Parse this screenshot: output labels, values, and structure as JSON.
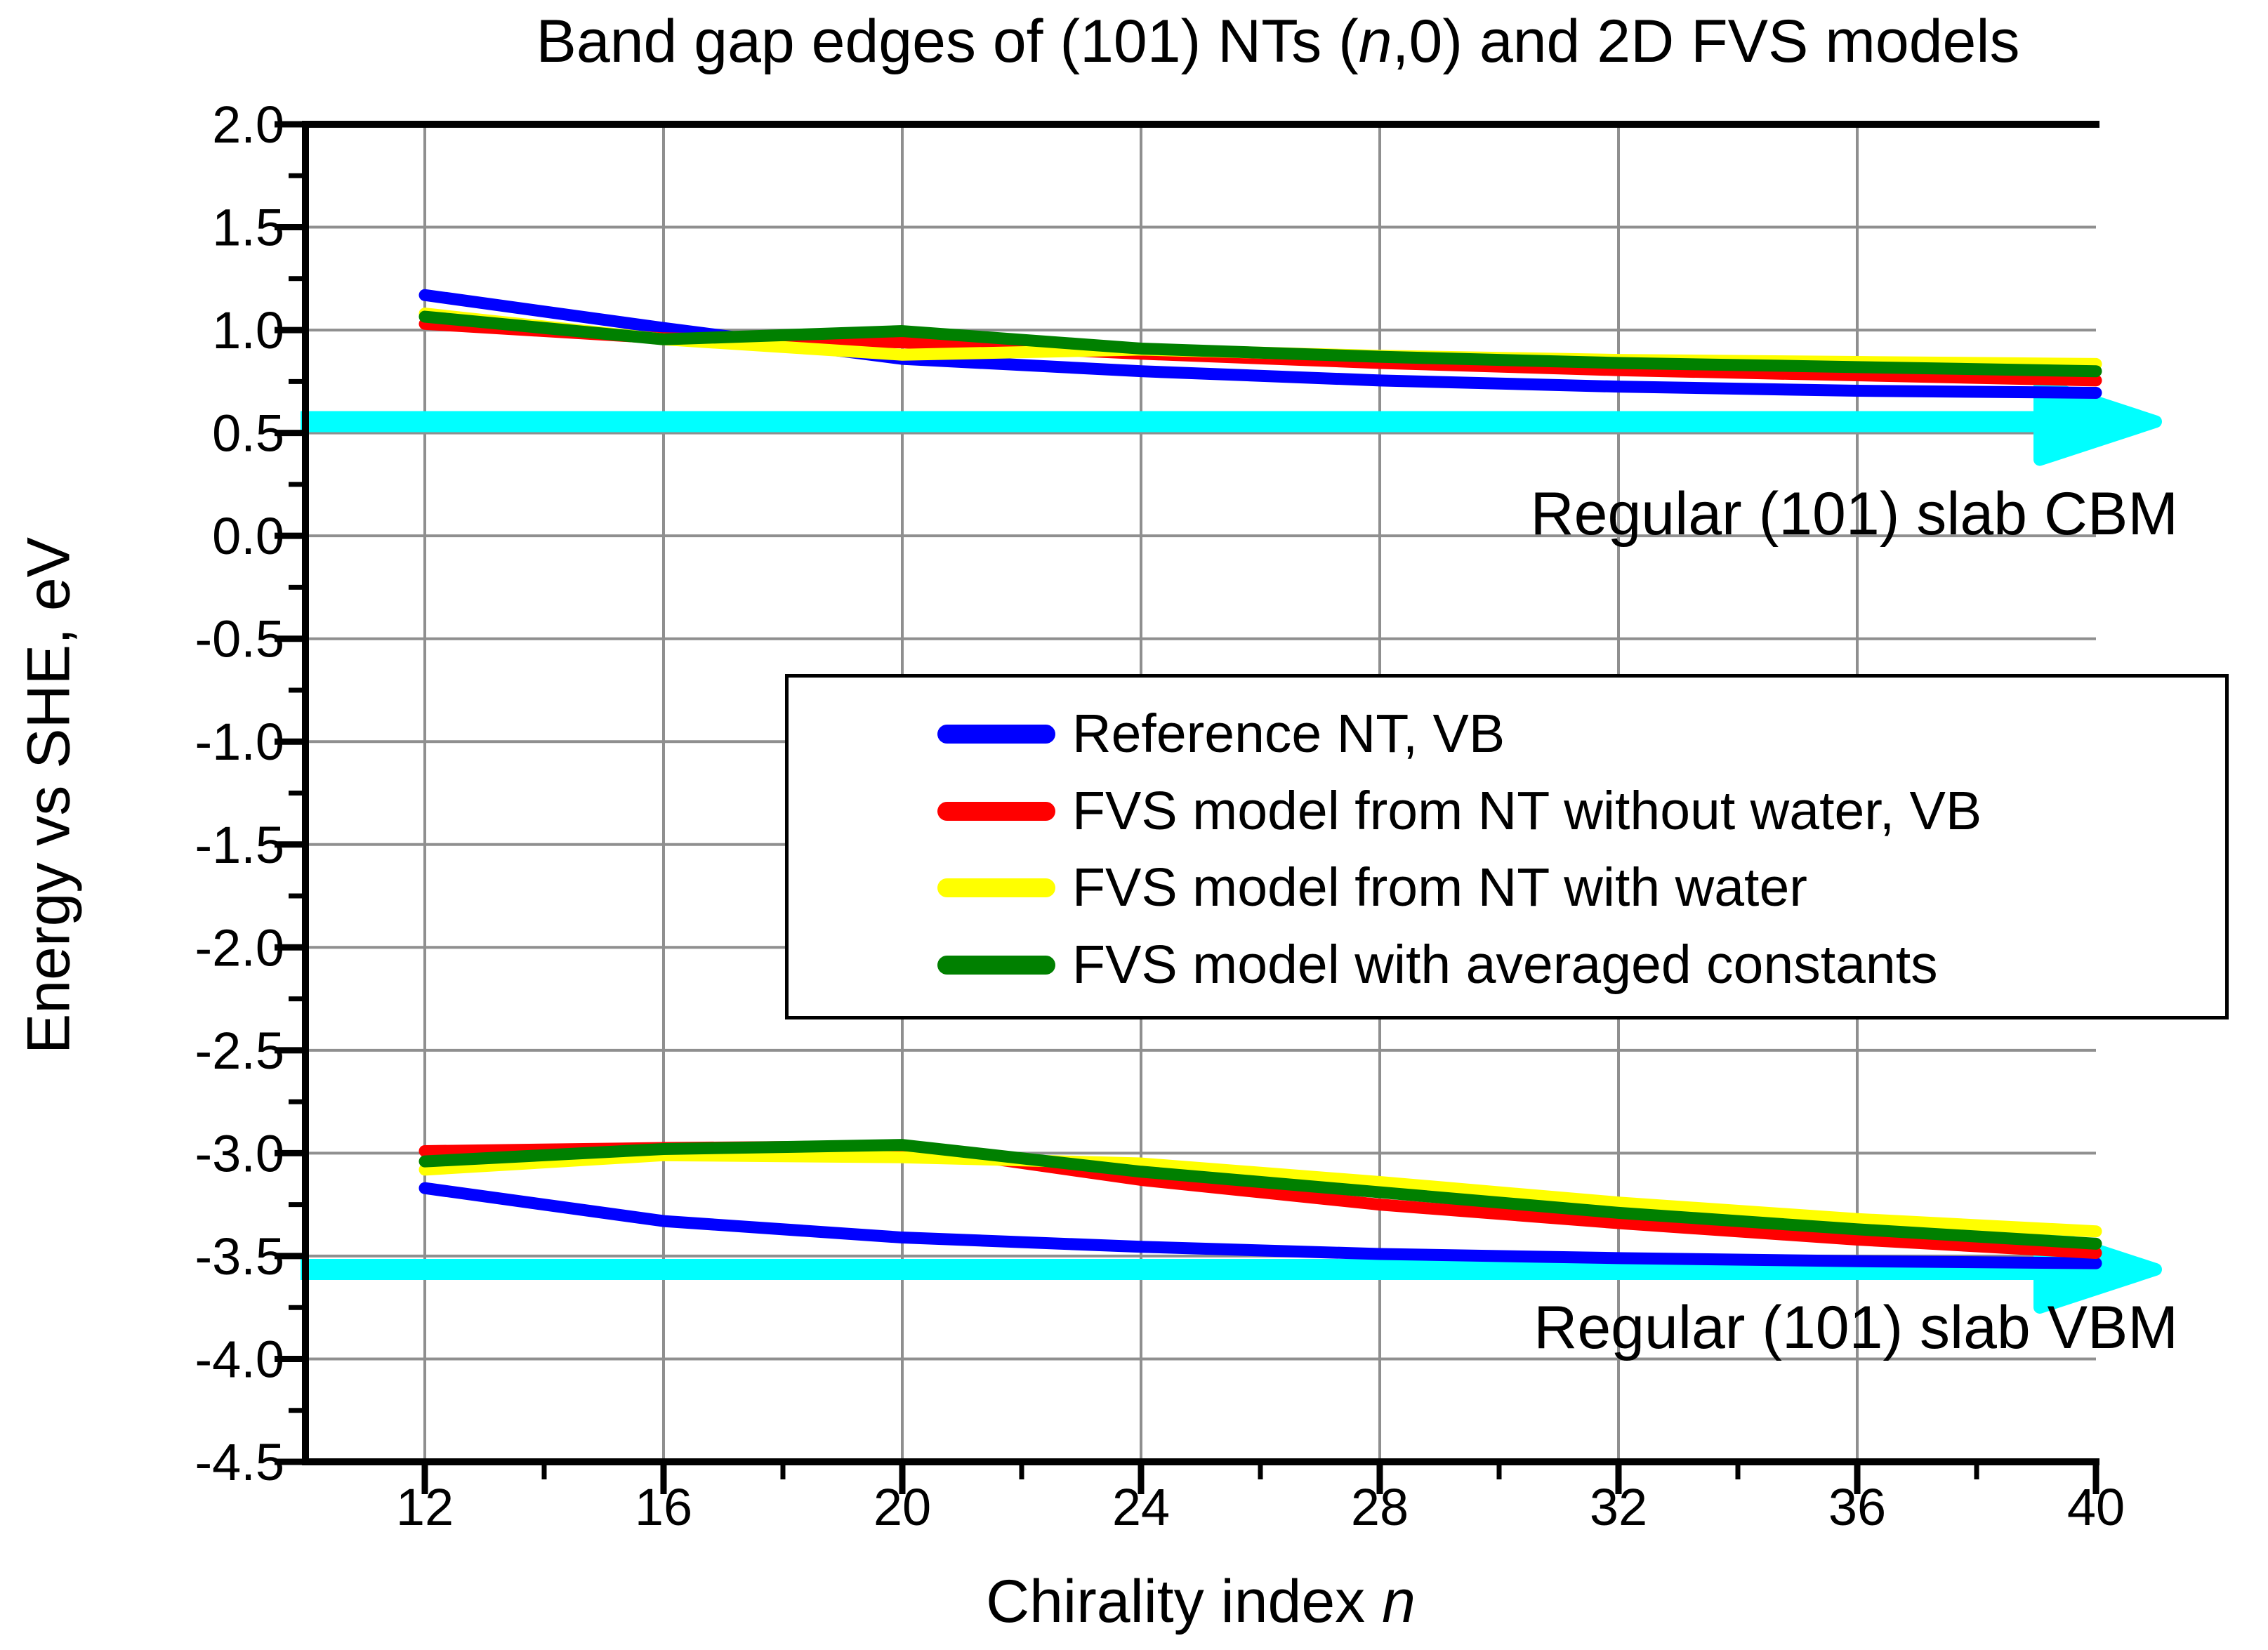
{
  "title": {
    "pre": "Band gap edges of (101) NTs (",
    "italic_var": "n",
    "post": ",0) and 2D FVS models"
  },
  "y_axis": {
    "label": "Energy vs SHE, eV",
    "tick_labels": [
      "2.0",
      "1.5",
      "1.0",
      "0.5",
      "0.0",
      "-0.5",
      "-1.0",
      "-1.5",
      "-2.0",
      "-2.5",
      "-3.0",
      "-3.5",
      "-4.0",
      "-4.5"
    ],
    "tick_values": [
      2.0,
      1.5,
      1.0,
      0.5,
      0.0,
      -0.5,
      -1.0,
      -1.5,
      -2.0,
      -2.5,
      -3.0,
      -3.5,
      -4.0,
      -4.5
    ]
  },
  "x_axis": {
    "label_pre": "Chirality index ",
    "label_italic_var": "n",
    "tick_values": [
      12,
      16,
      20,
      24,
      28,
      32,
      36,
      40
    ]
  },
  "chart_data": {
    "type": "line",
    "x_range": [
      10,
      40
    ],
    "y_range": [
      -4.5,
      2.0
    ],
    "grid": true,
    "legend_position": "center-right-box",
    "x": [
      12,
      16,
      20,
      24,
      28,
      32,
      36,
      40
    ],
    "series": [
      {
        "label": "Reference NT, VB",
        "color": "#0000FF",
        "cb_values": [
          1.17,
          1.01,
          0.86,
          0.8,
          0.755,
          0.725,
          0.705,
          0.695
        ],
        "vb_values": [
          -3.17,
          -3.33,
          -3.41,
          -3.455,
          -3.49,
          -3.51,
          -3.525,
          -3.535
        ]
      },
      {
        "label": "FVS model from NT without water, VB",
        "color": "#FF0000",
        "cb_values": [
          1.03,
          0.96,
          0.94,
          0.885,
          0.84,
          0.805,
          0.78,
          0.755
        ],
        "vb_values": [
          -2.99,
          -2.975,
          -2.965,
          -3.13,
          -3.25,
          -3.34,
          -3.42,
          -3.485
        ]
      },
      {
        "label": "FVS model from NT with water",
        "color": "#FFFF00",
        "cb_values": [
          1.08,
          0.955,
          0.88,
          0.905,
          0.875,
          0.855,
          0.845,
          0.835
        ],
        "vb_values": [
          -3.08,
          -3.01,
          -3.02,
          -3.05,
          -3.14,
          -3.24,
          -3.32,
          -3.38
        ]
      },
      {
        "label": "FVS model with averaged constants",
        "color": "#008000",
        "cb_values": [
          1.065,
          0.955,
          0.995,
          0.91,
          0.87,
          0.84,
          0.82,
          0.8
        ],
        "vb_values": [
          -3.04,
          -2.98,
          -2.96,
          -3.09,
          -3.19,
          -3.29,
          -3.37,
          -3.44
        ]
      }
    ],
    "reference_lines": [
      {
        "label": "Regular (101) slab CBM",
        "value": 0.555,
        "color": "#00FFFF"
      },
      {
        "label": "Regular (101) slab VBM",
        "value": -3.565,
        "color": "#00FFFF"
      }
    ]
  },
  "colors": {
    "grid": "#8f8f8f",
    "axis": "#000000",
    "background": "#ffffff"
  }
}
